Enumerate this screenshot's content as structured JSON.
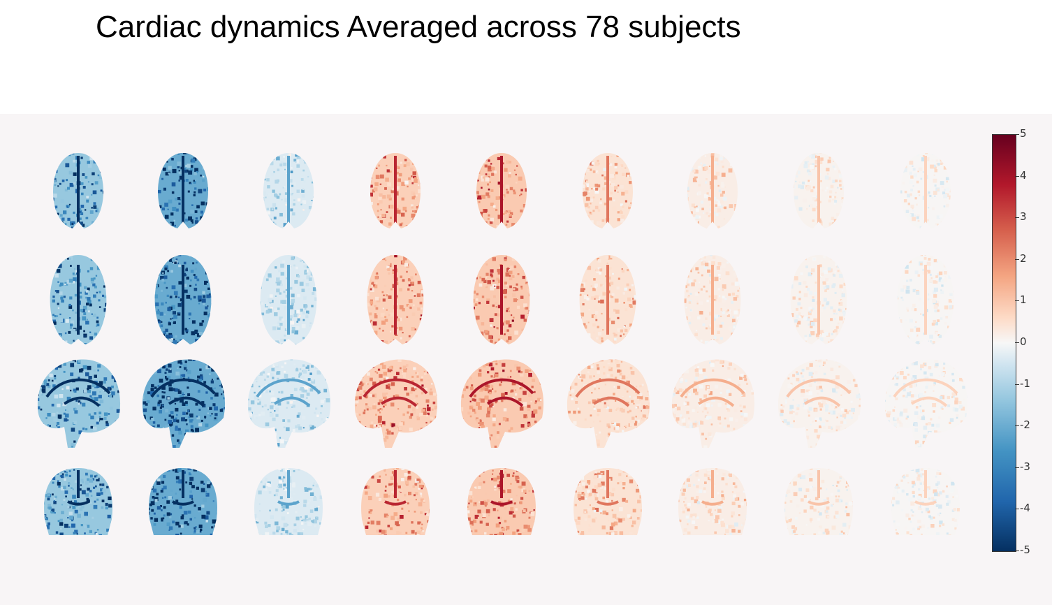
{
  "title": "Cardiac dynamics Averaged across 78 subjects",
  "colorbar": {
    "min": -5,
    "max": 5,
    "tick_labels": [
      "5",
      "4",
      "3",
      "2",
      "1",
      "0",
      "-1",
      "-2",
      "-3",
      "-4",
      "-5"
    ],
    "colormap": "RdBu_r",
    "colors": [
      "#053061",
      "#2166ac",
      "#4393c3",
      "#92c5de",
      "#d1e5f0",
      "#f7f7f7",
      "#fddbc7",
      "#f4a582",
      "#d6604d",
      "#b2182b",
      "#67001f"
    ]
  },
  "grid": {
    "rows": [
      "axial-superior",
      "axial-mid",
      "sagittal",
      "coronal"
    ],
    "columns": 9,
    "column_mean_values": [
      -3.2,
      -4.2,
      -1.2,
      2.0,
      2.2,
      1.2,
      0.6,
      0.3,
      0.1
    ]
  }
}
